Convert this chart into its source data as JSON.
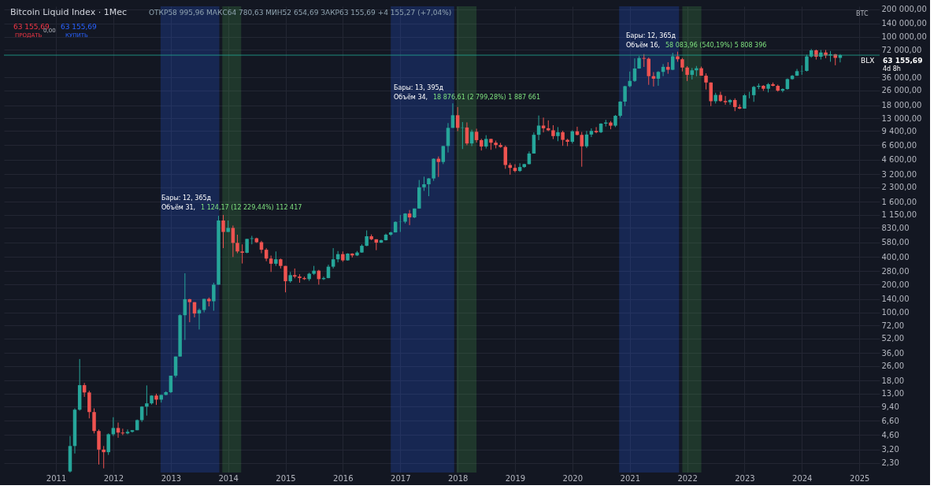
{
  "chart_data": {
    "type": "candlestick",
    "title": "Bitcoin Liquid Index · 1Мес",
    "subtitle": "ОТКР58 995,96 МАКС64 780,63 МИН52 654,69 ЗАКР63 155,69 +4 155,27 (+7,04%)",
    "x": [
      "2011-04",
      "2011-05",
      "2011-06",
      "2011-07",
      "2011-08",
      "2011-09",
      "2011-10",
      "2011-11",
      "2011-12",
      "2012-01",
      "2012-02",
      "2012-03",
      "2012-04",
      "2012-05",
      "2012-06",
      "2012-07",
      "2012-08",
      "2012-09",
      "2012-10",
      "2012-11",
      "2012-12",
      "2013-01",
      "2013-02",
      "2013-03",
      "2013-04",
      "2013-05",
      "2013-06",
      "2013-07",
      "2013-08",
      "2013-09",
      "2013-10",
      "2013-11",
      "2013-12",
      "2014-01",
      "2014-02",
      "2014-03",
      "2014-04",
      "2014-05",
      "2014-06",
      "2014-07",
      "2014-08",
      "2014-09",
      "2014-10",
      "2014-11",
      "2014-12",
      "2015-01",
      "2015-02",
      "2015-03",
      "2015-04",
      "2015-05",
      "2015-06",
      "2015-07",
      "2015-08",
      "2015-09",
      "2015-10",
      "2015-11",
      "2015-12",
      "2016-01",
      "2016-02",
      "2016-03",
      "2016-04",
      "2016-05",
      "2016-06",
      "2016-07",
      "2016-08",
      "2016-09",
      "2016-10",
      "2016-11",
      "2016-12",
      "2017-01",
      "2017-02",
      "2017-03",
      "2017-04",
      "2017-05",
      "2017-06",
      "2017-07",
      "2017-08",
      "2017-09",
      "2017-10",
      "2017-11",
      "2017-12",
      "2018-01",
      "2018-02",
      "2018-03",
      "2018-04",
      "2018-05",
      "2018-06",
      "2018-07",
      "2018-08",
      "2018-09",
      "2018-10",
      "2018-11",
      "2018-12",
      "2019-01",
      "2019-02",
      "2019-03",
      "2019-04",
      "2019-05",
      "2019-06",
      "2019-07",
      "2019-08",
      "2019-09",
      "2019-10",
      "2019-11",
      "2019-12",
      "2020-01",
      "2020-02",
      "2020-03",
      "2020-04",
      "2020-05",
      "2020-06",
      "2020-07",
      "2020-08",
      "2020-09",
      "2020-10",
      "2020-11",
      "2020-12",
      "2021-01",
      "2021-02",
      "2021-03",
      "2021-04",
      "2021-05",
      "2021-06",
      "2021-07",
      "2021-08",
      "2021-09",
      "2021-10",
      "2021-11",
      "2021-12",
      "2022-01",
      "2022-02",
      "2022-03",
      "2022-04",
      "2022-05",
      "2022-06",
      "2022-07",
      "2022-08",
      "2022-09",
      "2022-10",
      "2022-11",
      "2022-12",
      "2023-01",
      "2023-02",
      "2023-03",
      "2023-04",
      "2023-05",
      "2023-06",
      "2023-07",
      "2023-08",
      "2023-09",
      "2023-10",
      "2023-11",
      "2023-12",
      "2024-01",
      "2024-02",
      "2024-03",
      "2024-04",
      "2024-05",
      "2024-06",
      "2024-07",
      "2024-08",
      "2024-09"
    ],
    "ohlc": [
      [
        1.85,
        4.5,
        1.8,
        3.5
      ],
      [
        3.5,
        9,
        2.9,
        8.7
      ],
      [
        8.7,
        31,
        8.5,
        16.1
      ],
      [
        16.1,
        17,
        12,
        13.4
      ],
      [
        13.4,
        14,
        7,
        8.2
      ],
      [
        8.2,
        9,
        4.8,
        5.1
      ],
      [
        5.1,
        5.3,
        2.2,
        3.2
      ],
      [
        3.2,
        3.5,
        2,
        3
      ],
      [
        3,
        4.8,
        2.8,
        4.7
      ],
      [
        4.7,
        7.2,
        4.5,
        5.5
      ],
      [
        5.5,
        6.3,
        4.3,
        4.9
      ],
      [
        4.9,
        5.4,
        4.6,
        4.8
      ],
      [
        4.8,
        5.3,
        4.7,
        5
      ],
      [
        5,
        5.2,
        4.9,
        5.2
      ],
      [
        5.2,
        6.8,
        5.2,
        6.7
      ],
      [
        6.7,
        9.5,
        6.4,
        9.4
      ],
      [
        9.4,
        16,
        7.5,
        10.2
      ],
      [
        10.2,
        12.5,
        9.9,
        12.4
      ],
      [
        12.4,
        13,
        9.8,
        11.2
      ],
      [
        11.2,
        12.6,
        10.4,
        12.6
      ],
      [
        12.6,
        13.8,
        12.5,
        13.5
      ],
      [
        13.5,
        20.4,
        13.2,
        20.4
      ],
      [
        20.4,
        33,
        19.5,
        33
      ],
      [
        33,
        95,
        33,
        93
      ],
      [
        93,
        266,
        50,
        139
      ],
      [
        139,
        140,
        78,
        129
      ],
      [
        129,
        129,
        88,
        97
      ],
      [
        97,
        110,
        65,
        106
      ],
      [
        106,
        140,
        100,
        140
      ],
      [
        140,
        145,
        116,
        132
      ],
      [
        132,
        210,
        104,
        200
      ],
      [
        200,
        1124,
        200,
        1000
      ],
      [
        1000,
        1150,
        500,
        750
      ],
      [
        750,
        1000,
        750,
        830
      ],
      [
        830,
        880,
        400,
        570
      ],
      [
        570,
        700,
        440,
        460
      ],
      [
        460,
        550,
        340,
        445
      ],
      [
        445,
        630,
        440,
        630
      ],
      [
        630,
        680,
        550,
        640
      ],
      [
        640,
        650,
        570,
        580
      ],
      [
        580,
        600,
        440,
        480
      ],
      [
        480,
        500,
        360,
        385
      ],
      [
        385,
        415,
        275,
        338
      ],
      [
        338,
        460,
        320,
        378
      ],
      [
        378,
        385,
        300,
        320
      ],
      [
        320,
        320,
        165,
        218
      ],
      [
        218,
        275,
        210,
        254
      ],
      [
        254,
        300,
        235,
        245
      ],
      [
        245,
        260,
        210,
        236
      ],
      [
        236,
        245,
        225,
        230
      ],
      [
        230,
        270,
        220,
        263
      ],
      [
        263,
        320,
        255,
        284
      ],
      [
        284,
        290,
        200,
        230
      ],
      [
        230,
        245,
        225,
        236
      ],
      [
        236,
        330,
        235,
        314
      ],
      [
        314,
        500,
        300,
        378
      ],
      [
        378,
        465,
        350,
        430
      ],
      [
        430,
        460,
        355,
        368
      ],
      [
        368,
        440,
        365,
        436
      ],
      [
        436,
        440,
        395,
        416
      ],
      [
        416,
        465,
        410,
        448
      ],
      [
        448,
        550,
        445,
        530
      ],
      [
        530,
        780,
        525,
        673
      ],
      [
        673,
        705,
        610,
        624
      ],
      [
        624,
        625,
        475,
        574
      ],
      [
        574,
        620,
        570,
        610
      ],
      [
        610,
        720,
        605,
        700
      ],
      [
        700,
        755,
        680,
        742
      ],
      [
        742,
        980,
        740,
        965
      ],
      [
        965,
        1150,
        750,
        970
      ],
      [
        970,
        1200,
        930,
        1190
      ],
      [
        1190,
        1300,
        890,
        1080
      ],
      [
        1080,
        1350,
        1060,
        1350
      ],
      [
        1350,
        2760,
        1350,
        2300
      ],
      [
        2300,
        3000,
        2100,
        2480
      ],
      [
        2480,
        2900,
        1840,
        2870
      ],
      [
        2870,
        4750,
        2700,
        4700
      ],
      [
        4700,
        4980,
        2980,
        4340
      ],
      [
        4340,
        6470,
        4110,
        6470
      ],
      [
        6470,
        11500,
        5500,
        10200
      ],
      [
        10200,
        18877,
        10200,
        14000
      ],
      [
        14000,
        17200,
        9400,
        10200
      ],
      [
        10200,
        11800,
        6000,
        10300
      ],
      [
        10300,
        11700,
        6600,
        6900
      ],
      [
        6900,
        9750,
        6450,
        9250
      ],
      [
        9250,
        9990,
        7050,
        7500
      ],
      [
        7500,
        7760,
        5780,
        6390
      ],
      [
        6390,
        8490,
        6080,
        7730
      ],
      [
        7730,
        7750,
        5880,
        7030
      ],
      [
        7030,
        7410,
        6100,
        6630
      ],
      [
        6630,
        7000,
        6200,
        6320
      ],
      [
        6320,
        6550,
        3650,
        4020
      ],
      [
        4020,
        4240,
        3150,
        3740
      ],
      [
        3740,
        4100,
        3350,
        3460
      ],
      [
        3460,
        4200,
        3380,
        3820
      ],
      [
        3820,
        4150,
        3740,
        4110
      ],
      [
        4110,
        5650,
        4080,
        5360
      ],
      [
        5360,
        9100,
        5350,
        8570
      ],
      [
        8570,
        13900,
        7500,
        10800
      ],
      [
        10800,
        13200,
        9100,
        10100
      ],
      [
        10100,
        12300,
        9400,
        9600
      ],
      [
        9600,
        10900,
        7700,
        8300
      ],
      [
        8300,
        10400,
        7300,
        9150
      ],
      [
        9150,
        9500,
        6500,
        7550
      ],
      [
        7550,
        7750,
        6450,
        7200
      ],
      [
        7200,
        9600,
        6900,
        9350
      ],
      [
        9350,
        10500,
        8450,
        8550
      ],
      [
        8550,
        9200,
        3850,
        6420
      ],
      [
        6420,
        9450,
        6150,
        8630
      ],
      [
        8630,
        10070,
        8100,
        9450
      ],
      [
        9450,
        10400,
        8900,
        9140
      ],
      [
        9140,
        11450,
        8950,
        11350
      ],
      [
        11350,
        12480,
        10550,
        11660
      ],
      [
        11660,
        12100,
        9850,
        10780
      ],
      [
        10780,
        14100,
        10400,
        13800
      ],
      [
        13800,
        19900,
        13200,
        19700
      ],
      [
        19700,
        29300,
        17600,
        29000
      ],
      [
        29000,
        41900,
        28200,
        33100
      ],
      [
        33100,
        58300,
        32300,
        45200
      ],
      [
        45200,
        61700,
        45000,
        58800
      ],
      [
        58800,
        64800,
        47000,
        57700
      ],
      [
        57700,
        59500,
        30000,
        37300
      ],
      [
        37300,
        41300,
        28800,
        35000
      ],
      [
        35000,
        42300,
        29300,
        41500
      ],
      [
        41500,
        50500,
        37300,
        47100
      ],
      [
        47100,
        52900,
        39600,
        43800
      ],
      [
        43800,
        66900,
        43300,
        61300
      ],
      [
        61300,
        69000,
        53500,
        57000
      ],
      [
        57000,
        59000,
        42000,
        46300
      ],
      [
        46300,
        47900,
        33000,
        38500
      ],
      [
        38500,
        45800,
        34300,
        43200
      ],
      [
        43200,
        48200,
        37200,
        45500
      ],
      [
        45500,
        47400,
        37700,
        37700
      ],
      [
        37700,
        40000,
        26700,
        31800
      ],
      [
        31800,
        31900,
        17600,
        19900
      ],
      [
        19900,
        24600,
        18800,
        23300
      ],
      [
        23300,
        25200,
        19600,
        20000
      ],
      [
        20000,
        22700,
        18200,
        19400
      ],
      [
        19400,
        21000,
        18200,
        20500
      ],
      [
        20500,
        21400,
        15500,
        17200
      ],
      [
        17200,
        18400,
        16300,
        16550
      ],
      [
        16550,
        23900,
        16500,
        23100
      ],
      [
        23100,
        25200,
        21400,
        23150
      ],
      [
        23150,
        29200,
        19600,
        28500
      ],
      [
        28500,
        31000,
        26900,
        29300
      ],
      [
        29300,
        29800,
        25800,
        27200
      ],
      [
        27200,
        31400,
        24800,
        30500
      ],
      [
        30500,
        31800,
        28900,
        29250
      ],
      [
        29250,
        30200,
        25300,
        25950
      ],
      [
        25950,
        27500,
        24900,
        27000
      ],
      [
        27000,
        35200,
        26600,
        34650
      ],
      [
        34650,
        38400,
        34100,
        37700
      ],
      [
        37700,
        44700,
        37600,
        42300
      ],
      [
        42300,
        48900,
        38600,
        42600
      ],
      [
        42600,
        63900,
        41900,
        61200
      ],
      [
        61200,
        73700,
        59300,
        71300
      ],
      [
        71300,
        72700,
        56600,
        60700
      ],
      [
        60700,
        71900,
        56600,
        67500
      ],
      [
        67500,
        71900,
        58500,
        62700
      ],
      [
        62700,
        70000,
        53500,
        64600
      ],
      [
        64600,
        65000,
        49000,
        58995.96
      ],
      [
        58995.96,
        64780.63,
        52654.69,
        63155.69
      ]
    ],
    "log": true,
    "grid": true,
    "xlim": [
      "2010-03-01",
      "2025-04-15"
    ],
    "xticks": [
      "2011",
      "2012",
      "2013",
      "2014",
      "2015",
      "2016",
      "2017",
      "2018",
      "2019",
      "2020",
      "2021",
      "2022",
      "2023",
      "2024",
      "2025"
    ],
    "ylim": [
      1.8,
      215000
    ],
    "yticks": [
      {
        "value": 200000,
        "label": "200 000,00"
      },
      {
        "value": 140000,
        "label": "140 000,00"
      },
      {
        "value": 100000,
        "label": "100 000,00"
      },
      {
        "value": 72000,
        "label": "72 000,00"
      },
      {
        "value": 36000,
        "label": "36 000,00"
      },
      {
        "value": 26000,
        "label": "26 000,00"
      },
      {
        "value": 18000,
        "label": "18 000,00"
      },
      {
        "value": 13000,
        "label": "13 000,00"
      },
      {
        "value": 9400,
        "label": "9 400,00"
      },
      {
        "value": 6600,
        "label": "6 600,00"
      },
      {
        "value": 4600,
        "label": "4 600,00"
      },
      {
        "value": 3200,
        "label": "3 200,00"
      },
      {
        "value": 2300,
        "label": "2 300,00"
      },
      {
        "value": 1600,
        "label": "1 600,00"
      },
      {
        "value": 1150,
        "label": "1 150,00"
      },
      {
        "value": 830,
        "label": "830,00"
      },
      {
        "value": 580,
        "label": "580,00"
      },
      {
        "value": 400,
        "label": "400,00"
      },
      {
        "value": 280,
        "label": "280,00"
      },
      {
        "value": 200,
        "label": "200,00"
      },
      {
        "value": 140,
        "label": "140,00"
      },
      {
        "value": 100,
        "label": "100,00"
      },
      {
        "value": 72,
        "label": "72,00"
      },
      {
        "value": 52,
        "label": "52,00"
      },
      {
        "value": 36,
        "label": "36,00"
      },
      {
        "value": 26,
        "label": "26,00"
      },
      {
        "value": 18,
        "label": "18,00"
      },
      {
        "value": 13,
        "label": "13,00"
      },
      {
        "value": 9.4,
        "label": "9,40"
      },
      {
        "value": 6.6,
        "label": "6,60"
      },
      {
        "value": 4.6,
        "label": "4,60"
      },
      {
        "value": 3.2,
        "label": "3,20"
      },
      {
        "value": 2.3,
        "label": "2,30"
      }
    ],
    "ref_lines": [
      {
        "axis": "y",
        "value": 63155.69,
        "label": "63 155,69",
        "color": "#22ab94"
      }
    ],
    "bands": [
      {
        "axis": "x",
        "from": "2012-10-28",
        "to": "2013-11-06",
        "color": "#2962ff"
      },
      {
        "axis": "x",
        "from": "2013-11-25",
        "to": "2014-03-25",
        "color": "#4caf50"
      },
      {
        "axis": "x",
        "from": "2016-11-01",
        "to": "2017-12-10",
        "color": "#2962ff"
      },
      {
        "axis": "x",
        "from": "2017-12-25",
        "to": "2018-05-01",
        "color": "#4caf50"
      },
      {
        "axis": "x",
        "from": "2020-10-25",
        "to": "2021-11-10",
        "color": "#2962ff"
      },
      {
        "axis": "x",
        "from": "2021-12-01",
        "to": "2022-04-01",
        "color": "#4caf50"
      }
    ],
    "annotations": [
      "63 155,69",
      "ПРОДАТЬ",
      "0,00",
      "63 155,69",
      "КУПИТЬ",
      "BTC",
      "BLX",
      "4d 8h",
      "Бары: 12, 365д",
      "Объём 31,",
      "1 124,17 (12 229,44%) 112 417",
      "Бары: 13, 395д",
      "Объём 34,",
      "18 876,61 (2 799,28%) 1 887 661",
      "Бары: 12, 365д",
      "Объём 16,",
      "58 083,96 (540,19%) 5 808 396"
    ]
  }
}
